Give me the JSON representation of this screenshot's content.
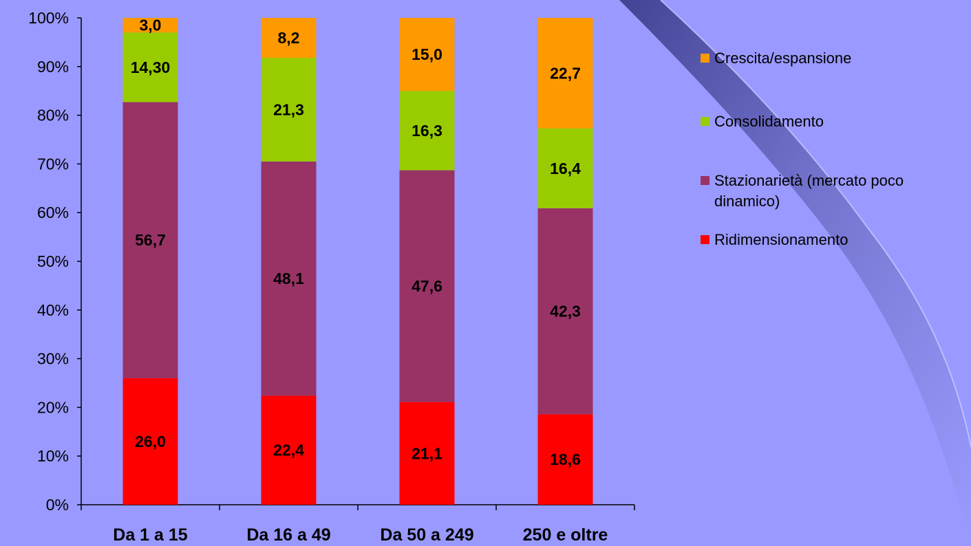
{
  "chart_data": {
    "type": "bar",
    "stacked": true,
    "percent_stacked": true,
    "categories": [
      "Da 1 a 15",
      "Da 16 a 49",
      "Da 50 a 249",
      "250 e  oltre"
    ],
    "series": [
      {
        "name": "Ridimensionamento",
        "color": "#ff0000",
        "values": [
          26.0,
          22.4,
          21.1,
          18.6
        ],
        "labels": [
          "26,0",
          "22,4",
          "21,1",
          "18,6"
        ]
      },
      {
        "name": "Stazionarietà (mercato poco dinamico)",
        "legend_lines": [
          "Stazionarietà (mercato poco",
          "dinamico)"
        ],
        "color": "#993366",
        "values": [
          56.7,
          48.1,
          47.6,
          42.3
        ],
        "labels": [
          "56,7",
          "48,1",
          "47,6",
          "42,3"
        ]
      },
      {
        "name": "Consolidamento",
        "color": "#99cc00",
        "values": [
          14.3,
          21.3,
          16.3,
          16.4
        ],
        "labels": [
          "14,30",
          "21,3",
          "16,3",
          "16,4"
        ]
      },
      {
        "name": "Crescita/espansione",
        "color": "#ff9900",
        "values": [
          3.0,
          8.2,
          15.0,
          22.7
        ],
        "labels": [
          "3,0",
          "8,2",
          "15,0",
          "22,7"
        ]
      }
    ],
    "yticks": [
      "0%",
      "10%",
      "20%",
      "30%",
      "40%",
      "50%",
      "60%",
      "70%",
      "80%",
      "90%",
      "100%"
    ],
    "ylim": [
      0,
      100
    ],
    "legend_position": "right",
    "legend_order": [
      "Crescita/espansione",
      "Consolidamento",
      "Stazionarietà (mercato poco dinamico)",
      "Ridimensionamento"
    ],
    "title": "",
    "xlabel": "",
    "ylabel": ""
  }
}
